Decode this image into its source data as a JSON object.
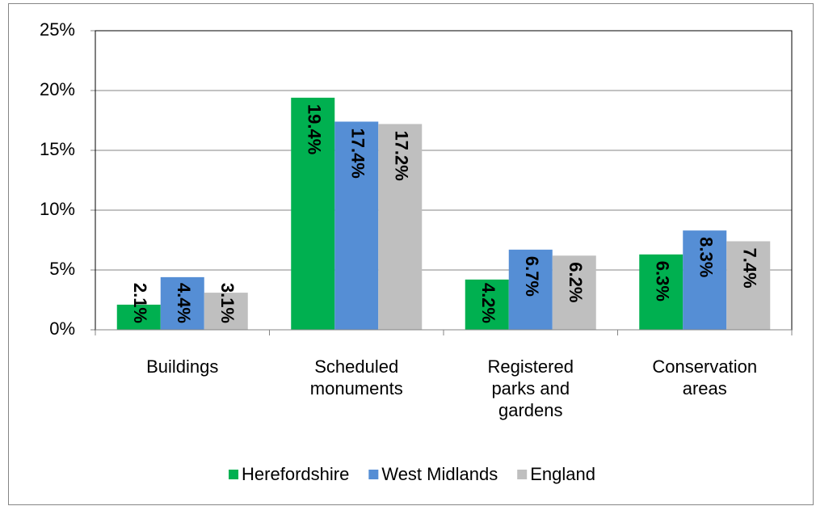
{
  "chart_data": {
    "type": "bar",
    "categories": [
      [
        "Buildings"
      ],
      [
        "Scheduled",
        "monuments"
      ],
      [
        "Registered",
        "parks and",
        "gardens"
      ],
      [
        "Conservation",
        "areas"
      ]
    ],
    "series": [
      {
        "name": "Herefordshire",
        "color": "#00b050",
        "values": [
          2.1,
          19.4,
          4.2,
          6.3
        ],
        "value_labels": [
          "2.1%",
          "19.4%",
          "4.2%",
          "6.3%"
        ]
      },
      {
        "name": "West Midlands",
        "color": "#558ed5",
        "values": [
          4.4,
          17.4,
          6.7,
          8.3
        ],
        "value_labels": [
          "4.4%",
          "17.4%",
          "6.7%",
          "8.3%"
        ]
      },
      {
        "name": "England",
        "color": "#bfbfbf",
        "values": [
          3.1,
          17.2,
          6.2,
          7.4
        ],
        "value_labels": [
          "3.1%",
          "17.2%",
          "6.2%",
          "7.4%"
        ]
      }
    ],
    "ylim": [
      0,
      25
    ],
    "yticks": [
      {
        "value": 0,
        "label": "0%"
      },
      {
        "value": 5,
        "label": "5%"
      },
      {
        "value": 10,
        "label": "10%"
      },
      {
        "value": 15,
        "label": "15%"
      },
      {
        "value": 20,
        "label": "20%"
      },
      {
        "value": 25,
        "label": "25%"
      }
    ],
    "grid": true,
    "legend": "bottom"
  }
}
